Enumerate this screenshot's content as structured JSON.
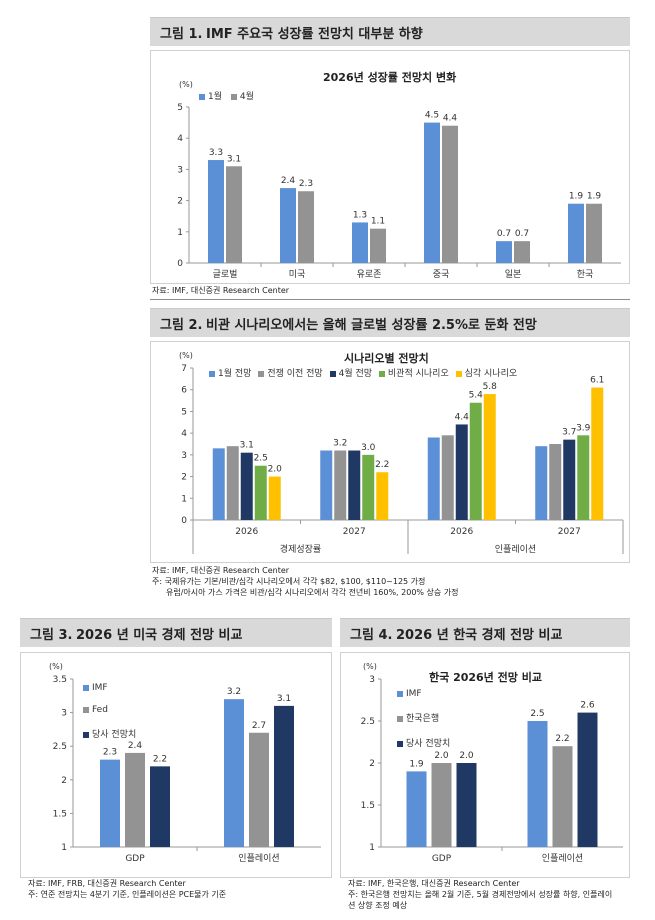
{
  "figures": [
    {
      "num": "그림 1.",
      "title": "IMF 주요국 성장률 전망치 대부분 하향",
      "source": [
        "자료: IMF, 대신증권 Research Center"
      ]
    },
    {
      "num": "그림 2.",
      "title": "비관 시나리오에서는 올해 글로벌 성장률 2.5%로 둔화 전망",
      "source": [
        "자료: IMF, 대신증권 Research Center",
        "주: 국제유가는 기본/비관/심각 시나리오에서 각각 $82, $100, $110~125 가정",
        "유럽/아시아 가스 가격은 비관/심각 시나리오에서 각각 전년비 160%, 200% 상승 가정"
      ]
    },
    {
      "num": "그림 3.",
      "title": "2026 년 미국 경제 전망 비교",
      "source": [
        "자료: IMF, FRB, 대신증권 Research Center",
        "주: 연준 전망치는 4분기 기준, 인플레이션은 PCE물가 기준"
      ]
    },
    {
      "num": "그림 4.",
      "title": "2026 년 한국 경제 전망 비교",
      "source": [
        "자료: IMF, 한국은행, 대신증권 Research Center",
        "주: 한국은행 전망치는 올해 2월 기준, 5월 경제전망에서 성장률 하향, 인플레이",
        "션 상향 조정 예상"
      ]
    }
  ],
  "colors": {
    "blue": "#5b8fd6",
    "gray": "#939393",
    "navy": "#1f3864",
    "green": "#70ad47",
    "yellow": "#ffc000"
  },
  "chart_data": [
    {
      "type": "bar",
      "title": "2026년 성장률 전망치 변화",
      "unit": "(%)",
      "categories": [
        "글로벌",
        "미국",
        "유로존",
        "중국",
        "일본",
        "한국"
      ],
      "series": [
        {
          "name": "1월",
          "values": [
            3.3,
            2.4,
            1.3,
            4.5,
            0.7,
            1.9
          ],
          "color": "#5b8fd6"
        },
        {
          "name": "4월",
          "values": [
            3.1,
            2.3,
            1.1,
            4.4,
            0.7,
            1.9
          ],
          "color": "#939393"
        }
      ],
      "ylim": [
        0,
        5
      ],
      "yticks": [
        "0",
        "1",
        "2",
        "3",
        "4",
        "5"
      ],
      "data_labels": true,
      "grid": false,
      "legend": "top-left"
    },
    {
      "type": "bar",
      "title": "시나리오별 전망치",
      "unit": "(%)",
      "categories": [
        "2026",
        "2027",
        "2026",
        "2027"
      ],
      "groups": [
        "경제성장률",
        "인플레이션"
      ],
      "series": [
        {
          "name": "1월 전망",
          "values": [
            3.3,
            3.2,
            3.8,
            3.4
          ],
          "labels": [
            "",
            "",
            "",
            ""
          ],
          "color": "#5b8fd6"
        },
        {
          "name": "전쟁 이전 전망",
          "values": [
            3.4,
            3.2,
            3.9,
            3.5
          ],
          "labels": [
            "",
            "3.2",
            "",
            ""
          ],
          "color": "#939393"
        },
        {
          "name": "4월 전망",
          "values": [
            3.1,
            3.2,
            4.4,
            3.7
          ],
          "labels": [
            "3.1",
            "",
            "4.4",
            "3.7"
          ],
          "color": "#1f3864"
        },
        {
          "name": "비관적 시나리오",
          "values": [
            2.5,
            3.0,
            5.4,
            3.9
          ],
          "labels": [
            "2.5",
            "3.0",
            "5.4",
            "3.9"
          ],
          "color": "#70ad47"
        },
        {
          "name": "심각 시나리오",
          "values": [
            2.0,
            2.2,
            5.8,
            6.1
          ],
          "labels": [
            "2.0",
            "2.2",
            "5.8",
            "6.1"
          ],
          "color": "#ffc000"
        }
      ],
      "ylim": [
        0,
        7
      ],
      "yticks": [
        "0",
        "1",
        "2",
        "3",
        "4",
        "5",
        "6",
        "7"
      ],
      "grid": false,
      "legend": "top"
    },
    {
      "type": "bar",
      "title": "",
      "unit": "(%)",
      "categories": [
        "GDP",
        "인플레이션"
      ],
      "series": [
        {
          "name": "IMF",
          "values": [
            2.3,
            3.2
          ],
          "color": "#5b8fd6"
        },
        {
          "name": "Fed",
          "values": [
            2.4,
            2.7
          ],
          "color": "#939393"
        },
        {
          "name": "당사 전망치",
          "values": [
            2.2,
            3.1
          ],
          "color": "#1f3864"
        }
      ],
      "ylim": [
        1,
        3.5
      ],
      "yticks": [
        "1",
        "1.5",
        "2",
        "2.5",
        "3",
        "3.5"
      ],
      "data_labels": true,
      "grid": false,
      "legend": "left"
    },
    {
      "type": "bar",
      "title": "한국 2026년 전망 비교",
      "unit": "(%)",
      "categories": [
        "GDP",
        "인플레이션"
      ],
      "series": [
        {
          "name": "IMF",
          "values": [
            1.9,
            2.5
          ],
          "color": "#5b8fd6"
        },
        {
          "name": "한국은행",
          "values": [
            2.0,
            2.2
          ],
          "color": "#939393"
        },
        {
          "name": "당사 전망치",
          "values": [
            2.0,
            2.6
          ],
          "color": "#1f3864"
        }
      ],
      "ylim": [
        1,
        3
      ],
      "yticks": [
        "1",
        "1.5",
        "2",
        "2.5",
        "3"
      ],
      "data_labels": true,
      "grid": false,
      "legend": "left"
    }
  ]
}
